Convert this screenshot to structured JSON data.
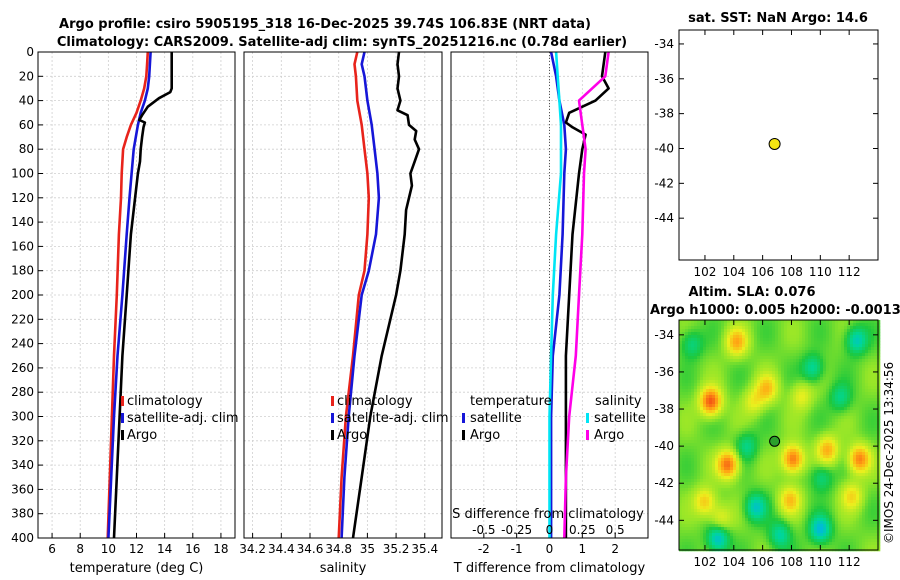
{
  "titles": {
    "main": "Argo profile: csiro 5905195_318 16-Dec-2025 39.74S 106.83E (NRT data)",
    "sub": "Climatology: CARS2009. Satellite-adj clim: synTS_20251216.nc (0.78d earlier)",
    "sst": "sat. SST: NaN Argo: 14.6",
    "sla1": "Altim. SLA: 0.076",
    "sla2": "Argo h1000: 0.005 h2000: -0.0013",
    "stamp": "©IMOS 24-Dec-2025 13:34:56"
  },
  "colors": {
    "climatology": "#e8231b",
    "satellite": "#1616d8",
    "argo": "#000000",
    "salinity_clim": "#00e5f5",
    "salinity_argo": "#ff00e8",
    "marker_sst": "#f5e612"
  },
  "chart_data": [
    {
      "id": "temp",
      "type": "line",
      "title": "",
      "xlabel": "temperature (deg C)",
      "ylabel": "",
      "xlim": [
        5,
        19
      ],
      "ylim": [
        400,
        0
      ],
      "xticks": [
        "6",
        "8",
        "10",
        "12",
        "14",
        "16",
        "18"
      ],
      "xtick_values": [
        6,
        8,
        10,
        12,
        14,
        16,
        18
      ],
      "yticks": [
        "0",
        "20",
        "40",
        "60",
        "80",
        "100",
        "120",
        "140",
        "160",
        "180",
        "200",
        "220",
        "240",
        "260",
        "280",
        "300",
        "320",
        "340",
        "360",
        "380",
        "400"
      ],
      "legend": [
        "climatology",
        "satellite-adj. clim",
        "Argo"
      ],
      "series": [
        {
          "name": "climatology",
          "color": "#e8231b",
          "points": [
            [
              12.8,
              0
            ],
            [
              12.75,
              10
            ],
            [
              12.7,
              20
            ],
            [
              12.55,
              30
            ],
            [
              12.3,
              40
            ],
            [
              12.0,
              50
            ],
            [
              11.6,
              60
            ],
            [
              11.3,
              70
            ],
            [
              11.05,
              80
            ],
            [
              10.95,
              100
            ],
            [
              10.9,
              120
            ],
            [
              10.75,
              150
            ],
            [
              10.6,
              200
            ],
            [
              10.4,
              250
            ],
            [
              10.25,
              300
            ],
            [
              10.1,
              350
            ],
            [
              9.95,
              400
            ]
          ]
        },
        {
          "name": "satellite-adj. clim",
          "color": "#1616d8",
          "points": [
            [
              13.0,
              0
            ],
            [
              12.95,
              10
            ],
            [
              12.9,
              20
            ],
            [
              12.8,
              30
            ],
            [
              12.6,
              40
            ],
            [
              12.3,
              50
            ],
            [
              12.1,
              60
            ],
            [
              11.95,
              70
            ],
            [
              11.8,
              80
            ],
            [
              11.65,
              100
            ],
            [
              11.5,
              120
            ],
            [
              11.3,
              150
            ],
            [
              11.0,
              200
            ],
            [
              10.65,
              250
            ],
            [
              10.4,
              300
            ],
            [
              10.2,
              350
            ],
            [
              10.0,
              400
            ]
          ]
        },
        {
          "name": "Argo",
          "color": "#000000",
          "points": [
            [
              14.5,
              0
            ],
            [
              14.5,
              10
            ],
            [
              14.5,
              30
            ],
            [
              14.4,
              33
            ],
            [
              13.6,
              38
            ],
            [
              12.8,
              45
            ],
            [
              12.4,
              52
            ],
            [
              12.2,
              56
            ],
            [
              12.6,
              58
            ],
            [
              12.5,
              62
            ],
            [
              12.4,
              70
            ],
            [
              12.3,
              80
            ],
            [
              12.25,
              90
            ],
            [
              12.1,
              100
            ],
            [
              11.9,
              120
            ],
            [
              11.6,
              150
            ],
            [
              11.3,
              200
            ],
            [
              11.0,
              250
            ],
            [
              10.8,
              300
            ],
            [
              10.6,
              350
            ],
            [
              10.4,
              400
            ]
          ]
        }
      ]
    },
    {
      "id": "sal",
      "type": "line",
      "title": "",
      "xlabel": "salinity",
      "ylabel": "",
      "xlim": [
        34.14,
        35.52
      ],
      "ylim": [
        400,
        0
      ],
      "xticks": [
        "34.2",
        "34.4",
        "34.6",
        "34.8",
        "35",
        "35.2",
        "35.4"
      ],
      "xtick_values": [
        34.2,
        34.4,
        34.6,
        34.8,
        35.0,
        35.2,
        35.4
      ],
      "legend": [
        "climatology",
        "satellite-adj. clim",
        "Argo"
      ],
      "series": [
        {
          "name": "climatology",
          "color": "#e8231b",
          "points": [
            [
              34.93,
              0
            ],
            [
              34.91,
              10
            ],
            [
              34.92,
              20
            ],
            [
              34.93,
              40
            ],
            [
              34.96,
              60
            ],
            [
              34.98,
              80
            ],
            [
              35.0,
              100
            ],
            [
              35.01,
              120
            ],
            [
              35.0,
              150
            ],
            [
              34.98,
              180
            ],
            [
              34.94,
              200
            ],
            [
              34.9,
              250
            ],
            [
              34.85,
              300
            ],
            [
              34.82,
              350
            ],
            [
              34.8,
              400
            ]
          ]
        },
        {
          "name": "satellite-adj. clim",
          "color": "#1616d8",
          "points": [
            [
              34.98,
              0
            ],
            [
              34.96,
              10
            ],
            [
              34.98,
              20
            ],
            [
              35.0,
              40
            ],
            [
              35.03,
              60
            ],
            [
              35.05,
              80
            ],
            [
              35.07,
              100
            ],
            [
              35.08,
              120
            ],
            [
              35.06,
              150
            ],
            [
              35.01,
              180
            ],
            [
              34.96,
              200
            ],
            [
              34.91,
              250
            ],
            [
              34.87,
              300
            ],
            [
              34.84,
              350
            ],
            [
              34.82,
              400
            ]
          ]
        },
        {
          "name": "Argo",
          "color": "#000000",
          "points": [
            [
              35.22,
              0
            ],
            [
              35.21,
              10
            ],
            [
              35.22,
              20
            ],
            [
              35.21,
              30
            ],
            [
              35.23,
              40
            ],
            [
              35.21,
              48
            ],
            [
              35.28,
              52
            ],
            [
              35.29,
              60
            ],
            [
              35.34,
              65
            ],
            [
              35.33,
              72
            ],
            [
              35.36,
              80
            ],
            [
              35.33,
              90
            ],
            [
              35.3,
              100
            ],
            [
              35.31,
              110
            ],
            [
              35.29,
              120
            ],
            [
              35.27,
              130
            ],
            [
              35.26,
              150
            ],
            [
              35.23,
              180
            ],
            [
              35.2,
              200
            ],
            [
              35.1,
              250
            ],
            [
              35.02,
              300
            ],
            [
              34.96,
              350
            ],
            [
              34.9,
              400
            ]
          ]
        }
      ]
    },
    {
      "id": "diff",
      "type": "line",
      "title": "",
      "xlabel": "T difference from climatology",
      "xlabel_top": "S difference from climatology",
      "xlim": [
        -3,
        3
      ],
      "ylim": [
        400,
        0
      ],
      "xticks": [
        "-2",
        "-1",
        "0",
        "1",
        "2"
      ],
      "xtick_values": [
        -2,
        -1,
        0,
        1,
        2
      ],
      "xticks_s": [
        "-0.5",
        "-0.25",
        "0",
        "0.25",
        "0.5"
      ],
      "legend_t_title": "temperature",
      "legend_s_title": "salinity",
      "legend": [
        "satellite",
        "Argo",
        "satellite",
        "Argo"
      ],
      "series": [
        {
          "name": "temperature satellite",
          "color": "#1616d8",
          "points": [
            [
              0.05,
              0
            ],
            [
              0.2,
              20
            ],
            [
              0.3,
              40
            ],
            [
              0.45,
              60
            ],
            [
              0.5,
              80
            ],
            [
              0.45,
              100
            ],
            [
              0.4,
              150
            ],
            [
              0.3,
              200
            ],
            [
              0.1,
              250
            ],
            [
              0.05,
              300
            ],
            [
              0.05,
              400
            ]
          ]
        },
        {
          "name": "temperature Argo",
          "color": "#000000",
          "points": [
            [
              1.7,
              0
            ],
            [
              1.6,
              20
            ],
            [
              1.8,
              30
            ],
            [
              1.4,
              40
            ],
            [
              0.6,
              50
            ],
            [
              0.5,
              58
            ],
            [
              0.7,
              62
            ],
            [
              1.1,
              68
            ],
            [
              1.0,
              80
            ],
            [
              0.9,
              100
            ],
            [
              0.7,
              150
            ],
            [
              0.6,
              200
            ],
            [
              0.5,
              250
            ],
            [
              0.5,
              300
            ],
            [
              0.5,
              400
            ]
          ]
        },
        {
          "name": "salinity satellite",
          "color": "#00e5f5",
          "points": [
            [
              0.2,
              0
            ],
            [
              0.25,
              20
            ],
            [
              0.3,
              40
            ],
            [
              0.35,
              60
            ],
            [
              0.35,
              100
            ],
            [
              0.2,
              150
            ],
            [
              0.1,
              200
            ],
            [
              0.05,
              250
            ],
            [
              0.0,
              300
            ],
            [
              0.0,
              400
            ]
          ]
        },
        {
          "name": "salinity Argo",
          "color": "#ff00e8",
          "points": [
            [
              1.8,
              0
            ],
            [
              1.7,
              20
            ],
            [
              0.9,
              40
            ],
            [
              1.0,
              60
            ],
            [
              1.1,
              80
            ],
            [
              1.05,
              100
            ],
            [
              1.0,
              150
            ],
            [
              0.9,
              200
            ],
            [
              0.8,
              250
            ],
            [
              0.6,
              300
            ],
            [
              0.5,
              350
            ],
            [
              0.45,
              400
            ]
          ]
        }
      ]
    },
    {
      "id": "sst",
      "type": "scatter",
      "title": "sat. SST: NaN Argo: 14.6",
      "xlim": [
        100.2,
        114
      ],
      "ylim": [
        -46.4,
        -33.2
      ],
      "xticks": [
        "102",
        "104",
        "106",
        "108",
        "110",
        "112"
      ],
      "xtick_values": [
        102,
        104,
        106,
        108,
        110,
        112
      ],
      "yticks": [
        "-34",
        "-36",
        "-38",
        "-40",
        "-42",
        "-44"
      ],
      "ytick_values": [
        -34,
        -36,
        -38,
        -40,
        -42,
        -44
      ],
      "points": [
        [
          106.83,
          -39.74
        ]
      ]
    },
    {
      "id": "sla",
      "type": "heatmap",
      "title": "Altim. SLA: 0.076",
      "subtitle": "Argo h1000: 0.005 h2000: -0.0013",
      "xlim": [
        100.2,
        114
      ],
      "ylim": [
        -45.6,
        -33.2
      ],
      "xticks": [
        "102",
        "104",
        "106",
        "108",
        "110",
        "112"
      ],
      "xtick_values": [
        102,
        104,
        106,
        108,
        110,
        112
      ],
      "yticks": [
        "-34",
        "-36",
        "-38",
        "-40",
        "-42",
        "-44"
      ],
      "ytick_values": [
        -34,
        -36,
        -38,
        -40,
        -42,
        -44
      ],
      "points": [
        [
          106.83,
          -39.74
        ]
      ],
      "anomalies": [
        [
          102.4,
          -37.6,
          0.55
        ],
        [
          103.6,
          -41.0,
          0.5
        ],
        [
          104.2,
          -34.4,
          0.35
        ],
        [
          106.3,
          -36.9,
          0.3
        ],
        [
          108.1,
          -40.7,
          0.5
        ],
        [
          110.5,
          -40.2,
          0.35
        ],
        [
          112.7,
          -40.7,
          0.45
        ],
        [
          102.0,
          -43.0,
          0.3
        ],
        [
          102.9,
          -45.0,
          -0.35
        ],
        [
          105.5,
          -43.3,
          -0.3
        ],
        [
          110.0,
          -44.5,
          -0.35
        ],
        [
          112.5,
          -34.3,
          -0.3
        ],
        [
          109.5,
          -35.8,
          -0.25
        ],
        [
          107.2,
          -44.8,
          -0.25
        ],
        [
          101.1,
          -34.5,
          -0.2
        ],
        [
          105.4,
          -37.6,
          0.2
        ],
        [
          108.7,
          -37.3,
          0.2
        ],
        [
          104.9,
          -40.0,
          -0.2
        ],
        [
          111.4,
          -37.4,
          -0.2
        ],
        [
          112.2,
          -42.7,
          0.25
        ],
        [
          107.9,
          -42.9,
          0.3
        ],
        [
          103.1,
          -43.9,
          0.2
        ],
        [
          110.1,
          -41.7,
          -0.2
        ]
      ]
    }
  ]
}
